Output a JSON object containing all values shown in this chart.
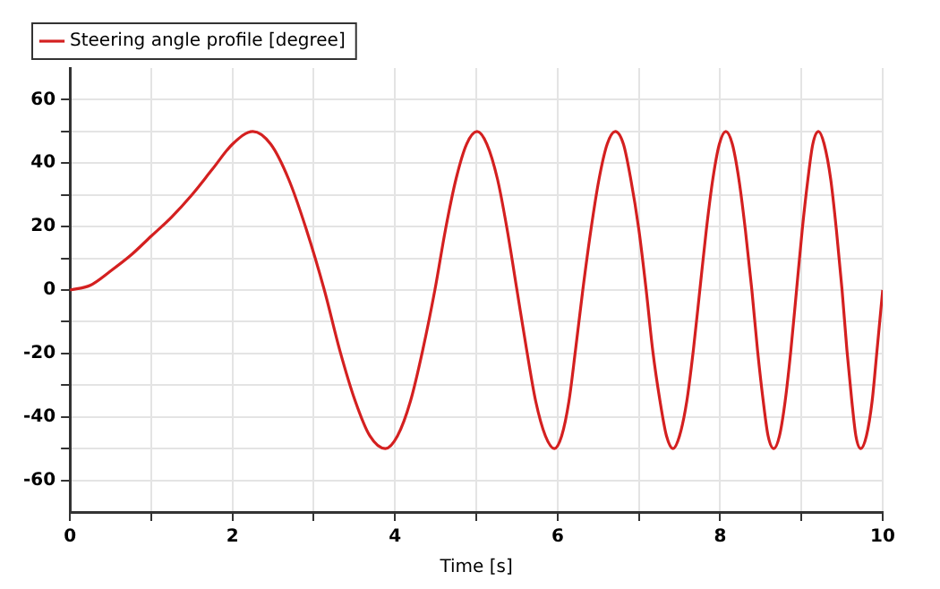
{
  "chart_data": {
    "type": "line",
    "xlabel": "Time [s]",
    "legend": "top left",
    "grid": true,
    "marker": "none",
    "line_style": "solid",
    "xlim": [
      0,
      10
    ],
    "ylim": [
      -70,
      70
    ],
    "xticks": [
      0,
      {
        "value": 1,
        "label": null
      },
      2,
      {
        "value": 3,
        "label": null
      },
      4,
      {
        "value": 5,
        "label": null
      },
      6,
      {
        "value": 7,
        "label": null
      },
      8,
      {
        "value": 9,
        "label": null
      },
      10
    ],
    "yticks": [
      -60,
      {
        "value": -50,
        "label": null
      },
      -40,
      {
        "value": -30,
        "label": null
      },
      -20,
      {
        "value": -10,
        "label": null
      },
      0,
      {
        "value": 10,
        "label": null
      },
      20,
      {
        "value": 30,
        "label": null
      },
      40,
      {
        "value": 50,
        "label": null
      },
      60
    ],
    "series": [
      {
        "name": "Steering angle profile [degree]",
        "color": "#d42020",
        "x": [
          0,
          0.25,
          0.5,
          0.75,
          1,
          1.25,
          1.5,
          1.75,
          2,
          2.25,
          2.47,
          2.69,
          2.91,
          3.13,
          3.32,
          3.51,
          3.69,
          3.88,
          4.03,
          4.19,
          4.34,
          4.49,
          4.62,
          4.75,
          4.88,
          5.01,
          5.13,
          5.26,
          5.38,
          5.5,
          5.62,
          5.73,
          5.85,
          5.96,
          6.05,
          6.14,
          6.22,
          6.31,
          6.41,
          6.51,
          6.61,
          6.71,
          6.81,
          6.9,
          7.0,
          7.09,
          7.17,
          7.26,
          7.34,
          7.42,
          7.5,
          7.59,
          7.67,
          7.75,
          7.83,
          7.91,
          7.99,
          8.07,
          8.15,
          8.23,
          8.31,
          8.39,
          8.46,
          8.53,
          8.59,
          8.66,
          8.73,
          8.8,
          8.87,
          8.94,
          9.01,
          9.08,
          9.14,
          9.21,
          9.28,
          9.36,
          9.43,
          9.5,
          9.56,
          9.62,
          9.67,
          9.73,
          9.8,
          9.87,
          9.93,
          10
        ],
        "values": [
          0,
          1.5,
          6,
          11,
          17,
          23,
          30,
          38,
          46,
          50,
          46,
          35,
          19,
          0,
          -19,
          -35,
          -46,
          -50,
          -46,
          -35,
          -19,
          0,
          19,
          35,
          46,
          50,
          46,
          35,
          19,
          0,
          -19,
          -35,
          -46,
          -50,
          -46,
          -35,
          -19,
          0,
          19,
          35,
          46,
          50,
          46,
          35,
          19,
          0,
          -19,
          -35,
          -46,
          -50,
          -46,
          -35,
          -19,
          0,
          19,
          35,
          46,
          50,
          46,
          35,
          19,
          0,
          -19,
          -35,
          -46,
          -50,
          -46,
          -35,
          -19,
          0,
          19,
          35,
          46,
          50,
          46,
          35,
          19,
          0,
          -19,
          -35,
          -46,
          -50,
          -46,
          -35,
          -19,
          0
        ]
      }
    ]
  }
}
